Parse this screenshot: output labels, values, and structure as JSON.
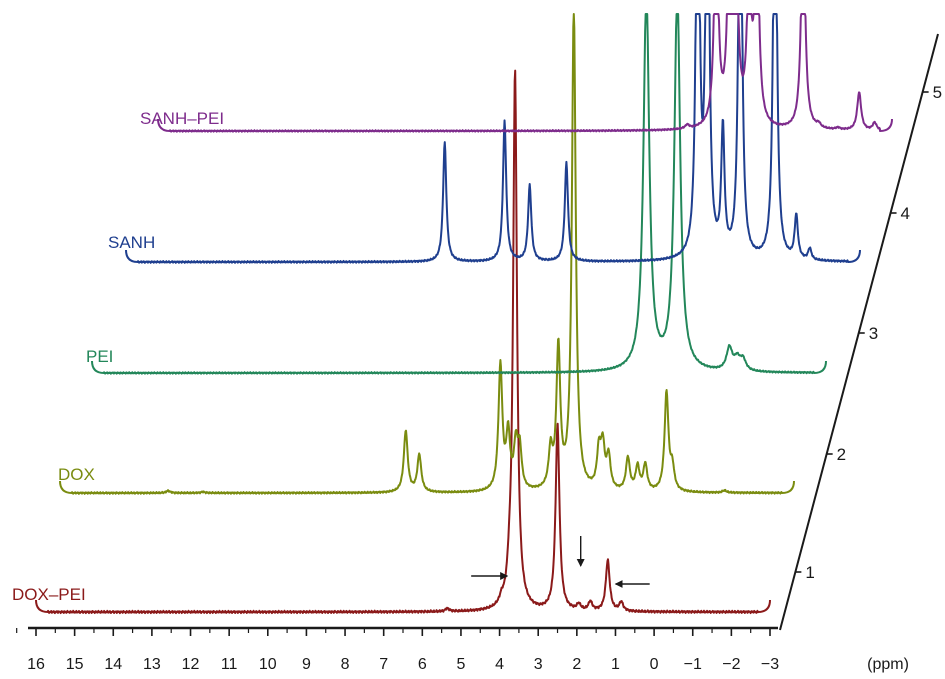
{
  "chart_data": {
    "type": "line",
    "title": "",
    "xlabel": "(ppm)",
    "ylabel": "",
    "x_axis": {
      "range": [
        16.5,
        -4
      ],
      "reversed": true,
      "tick_labels": [
        "16",
        "15",
        "14",
        "13",
        "12",
        "11",
        "10",
        "9",
        "8",
        "7",
        "6",
        "5",
        "4",
        "3",
        "2",
        "1",
        "0",
        "−1",
        "−2",
        "−3"
      ],
      "tick_values": [
        16,
        15,
        14,
        13,
        12,
        11,
        10,
        9,
        8,
        7,
        6,
        5,
        4,
        3,
        2,
        1,
        0,
        -1,
        -2,
        -3
      ],
      "minor_ticks": true
    },
    "depth_axis": {
      "tick_labels": [
        "1",
        "2",
        "3",
        "4",
        "5"
      ]
    },
    "grid": false,
    "legend": "none",
    "series": [
      {
        "name": "DOX–PEI",
        "color": "#8b1a1a",
        "x_range": [
          16.0,
          -3.0
        ],
        "peaks": [
          {
            "ppm": 5.35,
            "h": 0.01
          },
          {
            "ppm": 3.95,
            "h": 0.02
          },
          {
            "ppm": 3.75,
            "h": 0.06
          },
          {
            "ppm": 3.6,
            "h": 1.8
          },
          {
            "ppm": 2.5,
            "h": 0.62
          },
          {
            "ppm": 1.95,
            "h": 0.02
          },
          {
            "ppm": 1.65,
            "h": 0.03
          },
          {
            "ppm": 1.2,
            "h": 0.17
          },
          {
            "ppm": 0.85,
            "h": 0.03
          }
        ]
      },
      {
        "name": "DOX",
        "color": "#7a8c10",
        "x_range": [
          16.0,
          -3.0
        ],
        "peaks": [
          {
            "ppm": 13.2,
            "h": 0.01
          },
          {
            "ppm": 12.3,
            "h": 0.005
          },
          {
            "ppm": 7.05,
            "h": 0.28
          },
          {
            "ppm": 6.7,
            "h": 0.17
          },
          {
            "ppm": 4.6,
            "h": 0.57
          },
          {
            "ppm": 4.4,
            "h": 0.25
          },
          {
            "ppm": 4.2,
            "h": 0.2
          },
          {
            "ppm": 4.1,
            "h": 0.18
          },
          {
            "ppm": 3.3,
            "h": 0.17
          },
          {
            "ppm": 3.1,
            "h": 0.64
          },
          {
            "ppm": 2.7,
            "h": 2.2
          },
          {
            "ppm": 2.05,
            "h": 0.17
          },
          {
            "ppm": 1.95,
            "h": 0.19
          },
          {
            "ppm": 1.8,
            "h": 0.15
          },
          {
            "ppm": 1.3,
            "h": 0.15
          },
          {
            "ppm": 1.05,
            "h": 0.11
          },
          {
            "ppm": 0.85,
            "h": 0.12
          },
          {
            "ppm": 0.3,
            "h": 0.45
          },
          {
            "ppm": 0.15,
            "h": 0.1
          },
          {
            "ppm": -1.2,
            "h": 0.01
          }
        ]
      },
      {
        "name": "PEI",
        "color": "#23875a",
        "x_range": [
          16.0,
          -3.0
        ],
        "peaks": [
          {
            "ppm": 1.65,
            "h": 2.0
          },
          {
            "ppm": 0.85,
            "h": 2.0
          },
          {
            "ppm": -0.5,
            "h": 0.12
          },
          {
            "ppm": -0.7,
            "h": 0.06
          },
          {
            "ppm": -0.85,
            "h": 0.06
          }
        ]
      },
      {
        "name": "SANH",
        "color": "#1f3f8f",
        "x_range": [
          16.0,
          -3.0
        ],
        "peaks": [
          {
            "ppm": 7.75,
            "h": 0.52
          },
          {
            "ppm": 6.2,
            "h": 0.61
          },
          {
            "ppm": 5.55,
            "h": 0.33
          },
          {
            "ppm": 4.6,
            "h": 0.43
          },
          {
            "ppm": 1.2,
            "h": 2.2
          },
          {
            "ppm": 0.95,
            "h": 2.2
          },
          {
            "ppm": 0.55,
            "h": 0.55
          },
          {
            "ppm": 0.1,
            "h": 2.2
          },
          {
            "ppm": -0.8,
            "h": 2.2
          },
          {
            "ppm": -1.35,
            "h": 0.19
          },
          {
            "ppm": -1.7,
            "h": 0.05
          }
        ]
      },
      {
        "name": "SANH–PEI",
        "color": "#7e2c8c",
        "x_range": [
          16.0,
          -3.0
        ],
        "peaks": [
          {
            "ppm": 2.3,
            "h": 0.02
          },
          {
            "ppm": 1.55,
            "h": 1.2
          },
          {
            "ppm": 1.2,
            "h": 1.2
          },
          {
            "ppm": 1.05,
            "h": 1.2
          },
          {
            "ppm": 0.7,
            "h": 0.85
          },
          {
            "ppm": 0.5,
            "h": 1.2
          },
          {
            "ppm": -0.7,
            "h": 1.2
          },
          {
            "ppm": -1.1,
            "h": 0.02
          },
          {
            "ppm": -1.6,
            "h": 0.01
          },
          {
            "ppm": -2.15,
            "h": 0.2
          },
          {
            "ppm": -2.55,
            "h": 0.04
          }
        ]
      }
    ],
    "annotations": [
      {
        "type": "arrow",
        "direction": "right",
        "ppm": 3.7,
        "series": "DOX–PEI"
      },
      {
        "type": "arrow",
        "direction": "down",
        "ppm": 1.9,
        "series": "DOX–PEI"
      },
      {
        "type": "arrow",
        "direction": "left",
        "ppm": 1.15,
        "series": "DOX–PEI"
      }
    ]
  }
}
